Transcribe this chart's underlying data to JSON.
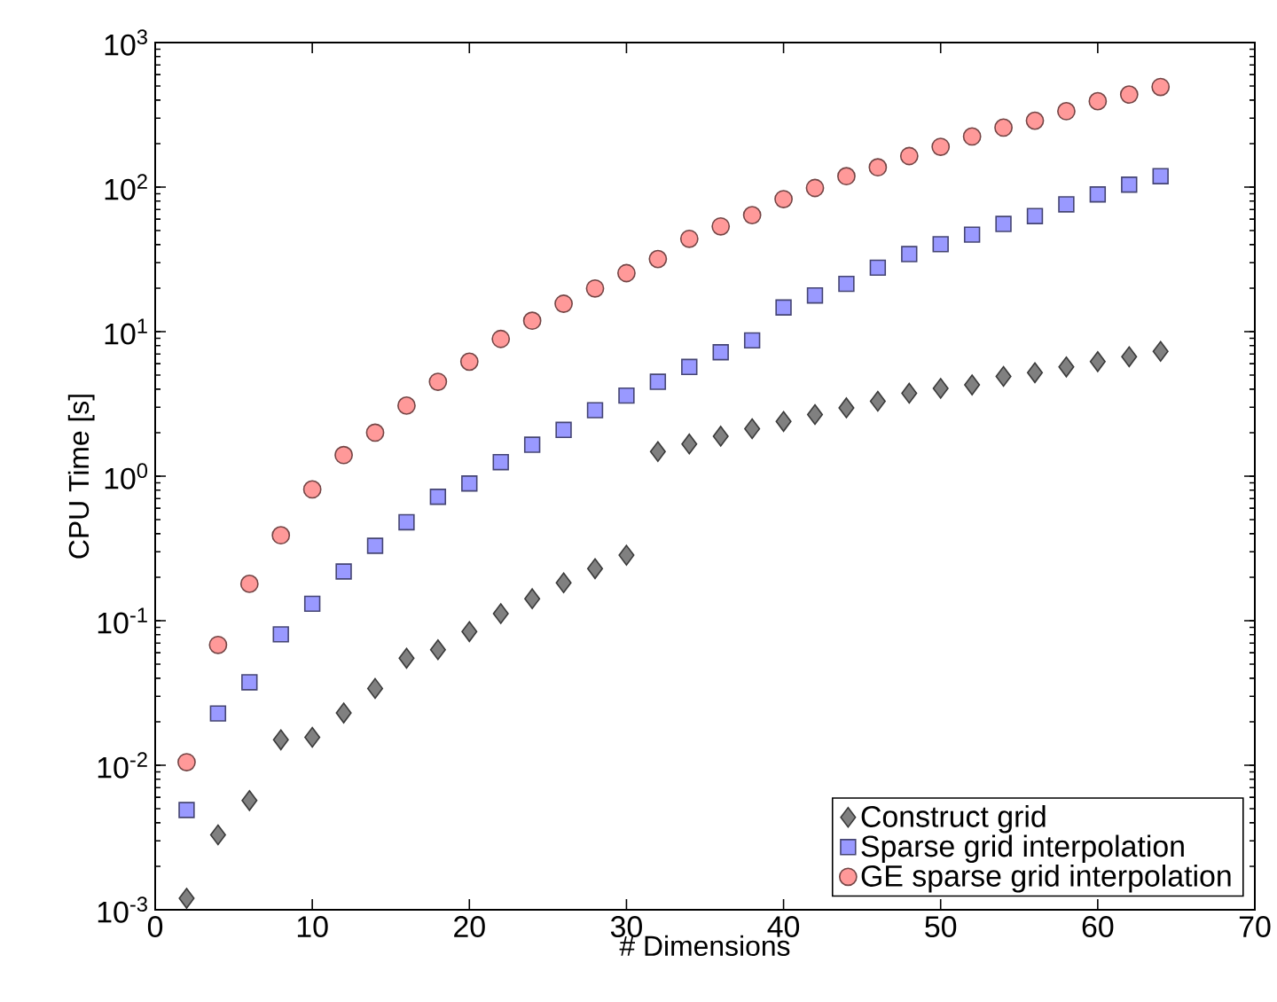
{
  "chart_data": {
    "type": "scatter",
    "xlabel": "# Dimensions",
    "ylabel": "CPU Time [s]",
    "log": "y",
    "xlim": [
      0,
      70
    ],
    "xticks": [
      0,
      10,
      20,
      30,
      40,
      50,
      60,
      70
    ],
    "ylim": [
      0.001,
      1000
    ],
    "yticks": [
      {
        "value": 0.001,
        "label": "10$^{-3}$"
      },
      {
        "value": 0.01,
        "label": "10$^{-2}$"
      },
      {
        "value": 0.1,
        "label": "10$^{-1}$"
      },
      {
        "value": 1,
        "label": "10$^{0}$"
      },
      {
        "value": 10,
        "label": "10$^{1}$"
      },
      {
        "value": 100,
        "label": "10$^{2}$"
      },
      {
        "value": 1000,
        "label": "10$^{3}$"
      }
    ],
    "legend": "bottom right",
    "x": [
      2,
      4,
      6,
      8,
      10,
      12,
      14,
      16,
      18,
      20,
      22,
      24,
      26,
      28,
      30,
      32,
      34,
      36,
      38,
      40,
      42,
      44,
      46,
      48,
      50,
      52,
      54,
      56,
      58,
      60,
      62,
      64
    ],
    "series": [
      {
        "name": "Construct grid",
        "color": "#808080",
        "marker": "diamond",
        "values": [
          0.0012,
          0.0033,
          0.0057,
          0.015,
          0.0156,
          0.023,
          0.034,
          0.055,
          0.063,
          0.084,
          0.112,
          0.142,
          0.183,
          0.229,
          0.284,
          1.48,
          1.67,
          1.89,
          2.13,
          2.39,
          2.67,
          2.97,
          3.3,
          3.75,
          4.05,
          4.28,
          4.9,
          5.2,
          5.7,
          6.2,
          6.7,
          7.3
        ]
      },
      {
        "name": "Sparse grid interpolation",
        "color": "#9999ff",
        "marker": "square",
        "values": [
          0.0049,
          0.0228,
          0.0375,
          0.0805,
          0.131,
          0.219,
          0.33,
          0.48,
          0.72,
          0.89,
          1.25,
          1.65,
          2.09,
          2.86,
          3.61,
          4.5,
          5.7,
          7.2,
          8.7,
          14.7,
          17.8,
          21.4,
          27.7,
          34.4,
          40.3,
          46.9,
          55.6,
          63,
          76,
          89,
          104,
          119
        ]
      },
      {
        "name": "GE sparse grid interpolation",
        "color": "#ff9999",
        "marker": "circle",
        "values": [
          0.0105,
          0.068,
          0.18,
          0.39,
          0.81,
          1.4,
          2.0,
          3.08,
          4.5,
          6.2,
          8.9,
          11.9,
          15.6,
          19.9,
          25.4,
          31.8,
          43.9,
          53.5,
          64,
          82.6,
          98.6,
          119,
          137,
          164,
          190,
          224,
          258,
          288,
          335,
          393,
          437,
          493
        ]
      }
    ]
  }
}
